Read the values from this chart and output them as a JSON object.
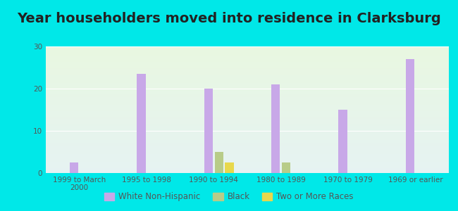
{
  "title": "Year householders moved into residence in Clarksburg",
  "categories": [
    "1999 to March\n2000",
    "1995 to 1998",
    "1990 to 1994",
    "1980 to 1989",
    "1970 to 1979",
    "1969 or earlier"
  ],
  "white_non_hispanic": [
    2.5,
    23.5,
    20.0,
    21.0,
    15.0,
    27.0
  ],
  "black": [
    0,
    0,
    5.0,
    2.5,
    0,
    0
  ],
  "two_or_more_races": [
    0,
    0,
    2.5,
    0,
    0,
    0
  ],
  "bar_width": 0.13,
  "ylim": [
    0,
    30
  ],
  "yticks": [
    0,
    10,
    20,
    30
  ],
  "color_white": "#c8a8e8",
  "color_black": "#b8cc88",
  "color_two_or_more": "#e8d84c",
  "bg_color": "#00e8e8",
  "title_fontsize": 14,
  "tick_fontsize": 7.5,
  "legend_fontsize": 8.5
}
